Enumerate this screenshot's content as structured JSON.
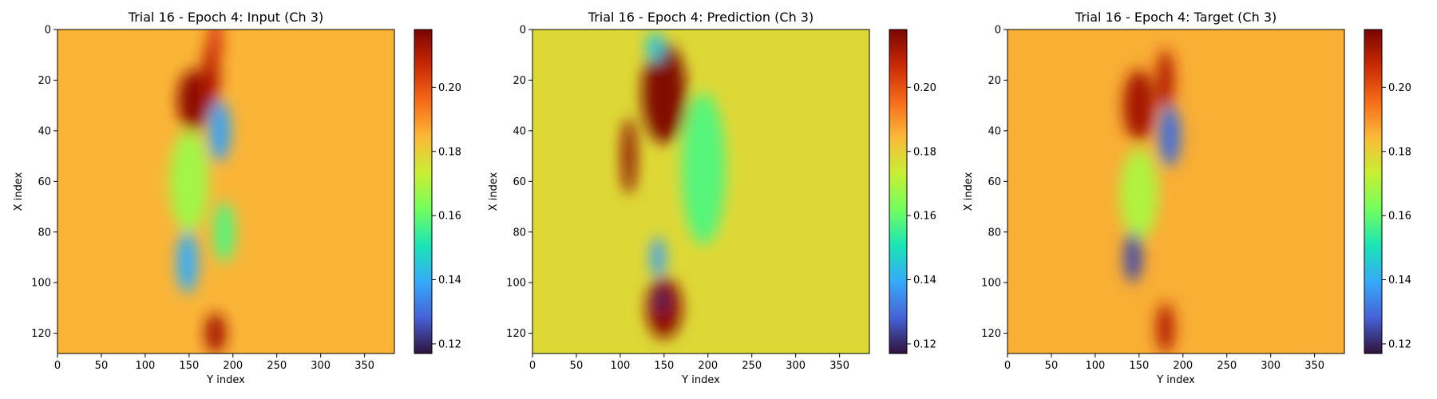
{
  "chart_data": [
    {
      "type": "heatmap",
      "title": "Trial 16 - Epoch 4: Input (Ch 3)",
      "xlabel": "Y index",
      "ylabel": "X index",
      "x_range": [
        0,
        384
      ],
      "y_range": [
        0,
        128
      ],
      "y_inverted": true,
      "x_ticks": [
        0,
        50,
        100,
        150,
        200,
        250,
        300,
        350
      ],
      "y_ticks": [
        0,
        20,
        40,
        60,
        80,
        100,
        120
      ],
      "colormap": "turbo",
      "colorbar_range": [
        0.117,
        0.218
      ],
      "colorbar_ticks": [
        "0.12",
        "0.14",
        "0.16",
        "0.18",
        "0.20"
      ],
      "background_value": 0.185,
      "features": [
        {
          "x": 155,
          "y": 28,
          "rx": 18,
          "ry": 12,
          "value": 0.215
        },
        {
          "x": 175,
          "y": 18,
          "rx": 10,
          "ry": 14,
          "value": 0.21
        },
        {
          "x": 180,
          "y": 5,
          "rx": 8,
          "ry": 10,
          "value": 0.205
        },
        {
          "x": 185,
          "y": 40,
          "rx": 12,
          "ry": 12,
          "value": 0.138
        },
        {
          "x": 150,
          "y": 60,
          "rx": 22,
          "ry": 20,
          "value": 0.168
        },
        {
          "x": 190,
          "y": 80,
          "rx": 12,
          "ry": 12,
          "value": 0.158
        },
        {
          "x": 148,
          "y": 92,
          "rx": 12,
          "ry": 12,
          "value": 0.14
        },
        {
          "x": 180,
          "y": 120,
          "rx": 12,
          "ry": 8,
          "value": 0.212
        }
      ]
    },
    {
      "type": "heatmap",
      "title": "Trial 16 - Epoch 4: Prediction (Ch 3)",
      "xlabel": "Y index",
      "ylabel": "X index",
      "x_range": [
        0,
        384
      ],
      "y_range": [
        0,
        128
      ],
      "y_inverted": true,
      "x_ticks": [
        0,
        50,
        100,
        150,
        200,
        250,
        300,
        350
      ],
      "y_ticks": [
        0,
        20,
        40,
        60,
        80,
        100,
        120
      ],
      "colormap": "turbo",
      "colorbar_range": [
        0.117,
        0.218
      ],
      "colorbar_ticks": [
        "0.12",
        "0.14",
        "0.16",
        "0.18",
        "0.20"
      ],
      "background_value": 0.178,
      "features": [
        {
          "x": 150,
          "y": 25,
          "rx": 25,
          "ry": 20,
          "value": 0.217
        },
        {
          "x": 110,
          "y": 50,
          "rx": 8,
          "ry": 15,
          "value": 0.215
        },
        {
          "x": 195,
          "y": 55,
          "rx": 25,
          "ry": 30,
          "value": 0.158
        },
        {
          "x": 150,
          "y": 110,
          "rx": 20,
          "ry": 12,
          "value": 0.215
        },
        {
          "x": 140,
          "y": 7,
          "rx": 10,
          "ry": 6,
          "value": 0.145
        },
        {
          "x": 143,
          "y": 90,
          "rx": 8,
          "ry": 8,
          "value": 0.138
        },
        {
          "x": 147,
          "y": 107,
          "rx": 6,
          "ry": 5,
          "value": 0.12
        }
      ]
    },
    {
      "type": "heatmap",
      "title": "Trial 16 - Epoch 4: Target (Ch 3)",
      "xlabel": "Y index",
      "ylabel": "X index",
      "x_range": [
        0,
        384
      ],
      "y_range": [
        0,
        128
      ],
      "y_inverted": true,
      "x_ticks": [
        0,
        50,
        100,
        150,
        200,
        250,
        300,
        350
      ],
      "y_ticks": [
        0,
        20,
        40,
        60,
        80,
        100,
        120
      ],
      "colormap": "turbo",
      "colorbar_range": [
        0.117,
        0.218
      ],
      "colorbar_ticks": [
        "0.12",
        "0.14",
        "0.16",
        "0.18",
        "0.20"
      ],
      "background_value": 0.186,
      "features": [
        {
          "x": 150,
          "y": 30,
          "rx": 18,
          "ry": 14,
          "value": 0.212
        },
        {
          "x": 180,
          "y": 20,
          "rx": 10,
          "ry": 12,
          "value": 0.21
        },
        {
          "x": 185,
          "y": 42,
          "rx": 12,
          "ry": 12,
          "value": 0.13
        },
        {
          "x": 150,
          "y": 65,
          "rx": 22,
          "ry": 18,
          "value": 0.17
        },
        {
          "x": 143,
          "y": 90,
          "rx": 10,
          "ry": 10,
          "value": 0.125
        },
        {
          "x": 180,
          "y": 118,
          "rx": 10,
          "ry": 10,
          "value": 0.21
        }
      ]
    }
  ],
  "colormap_stops": [
    "#30123b",
    "#4662d7",
    "#36aaf9",
    "#1ae4b6",
    "#72fe5e",
    "#c8ef34",
    "#faba39",
    "#f66b19",
    "#ca2a04",
    "#7a0403"
  ]
}
